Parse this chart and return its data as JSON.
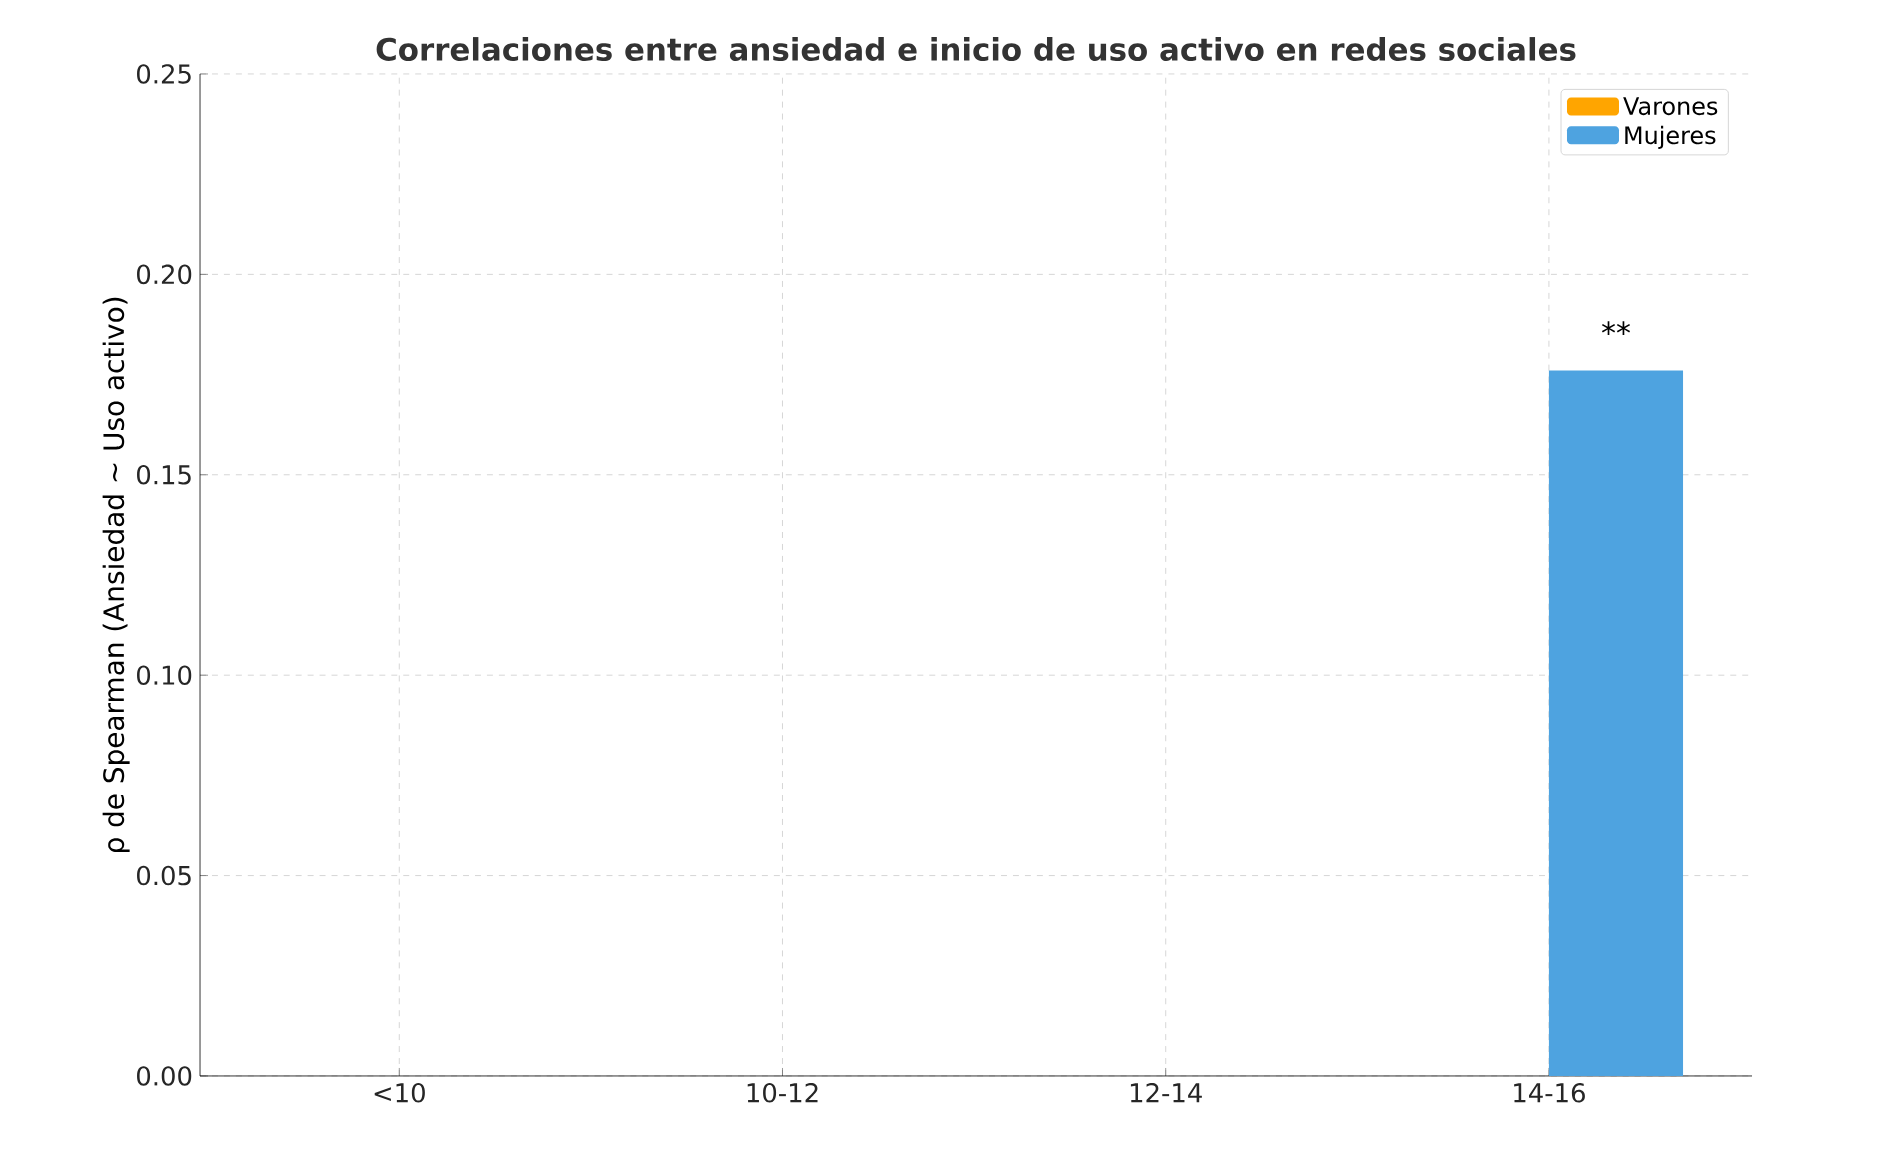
{
  "chart_data": {
    "type": "bar",
    "title": "Correlaciones entre ansiedad e inicio de uso activo en redes sociales",
    "ylabel": "ρ de Spearman (Ansiedad ~ Uso activo)",
    "categories": [
      "<10",
      "10-12",
      "12-14",
      "14-16"
    ],
    "series": [
      {
        "name": "Varones",
        "color": "#ffa500",
        "values": [
          0,
          0,
          0,
          0
        ]
      },
      {
        "name": "Mujeres",
        "color": "#4ea3e0",
        "values": [
          0,
          0,
          0,
          0.176
        ]
      }
    ],
    "ylim": [
      0,
      0.25
    ],
    "yticks": [
      {
        "value": 0,
        "label": "0.00"
      },
      {
        "value": 0.05,
        "label": "0.05"
      },
      {
        "value": 0.1,
        "label": "0.10"
      },
      {
        "value": 0.15,
        "label": "0.15"
      },
      {
        "value": 0.2,
        "label": "0.20"
      },
      {
        "value": 0.25,
        "label": "0.25"
      }
    ],
    "annotations": [
      "**"
    ],
    "grid": true,
    "legend": "top right"
  }
}
